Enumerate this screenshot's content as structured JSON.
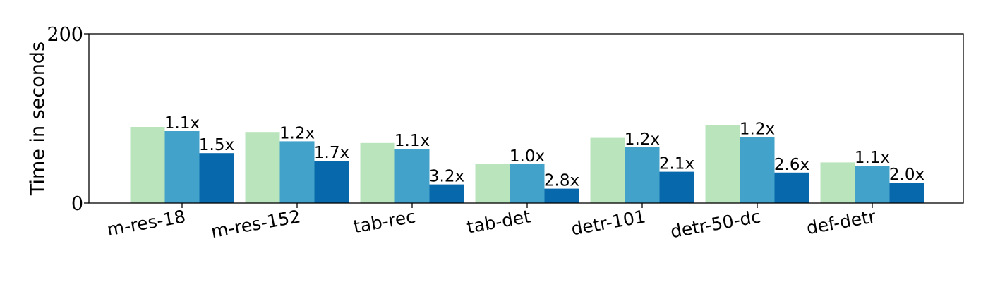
{
  "chart_data": {
    "type": "bar",
    "ylabel": "Time in seconds",
    "ylim": [
      0,
      200
    ],
    "yticks": [
      "0",
      "200"
    ],
    "categories": [
      "m-res-18",
      "m-res-152",
      "tab-rec",
      "tab-det",
      "detr-101",
      "detr-50-dc",
      "def-detr"
    ],
    "series": [
      {
        "color": "#bae4bc",
        "values": [
          90,
          84,
          71,
          46,
          77,
          92,
          48
        ],
        "labels": [
          "",
          "",
          "",
          "",
          "",
          "",
          ""
        ]
      },
      {
        "color": "#43a2ca",
        "values": [
          85,
          73,
          64,
          46,
          66,
          78,
          44
        ],
        "labels": [
          "1.1x",
          "1.2x",
          "1.1x",
          "1.0x",
          "1.2x",
          "1.2x",
          "1.1x"
        ]
      },
      {
        "color": "#0868ac",
        "values": [
          59,
          50,
          22,
          17,
          37,
          36,
          24
        ],
        "labels": [
          "1.5x",
          "1.7x",
          "3.2x",
          "2.8x",
          "2.1x",
          "2.6x",
          "2.0x"
        ]
      }
    ],
    "grid": false,
    "legend": "none"
  }
}
